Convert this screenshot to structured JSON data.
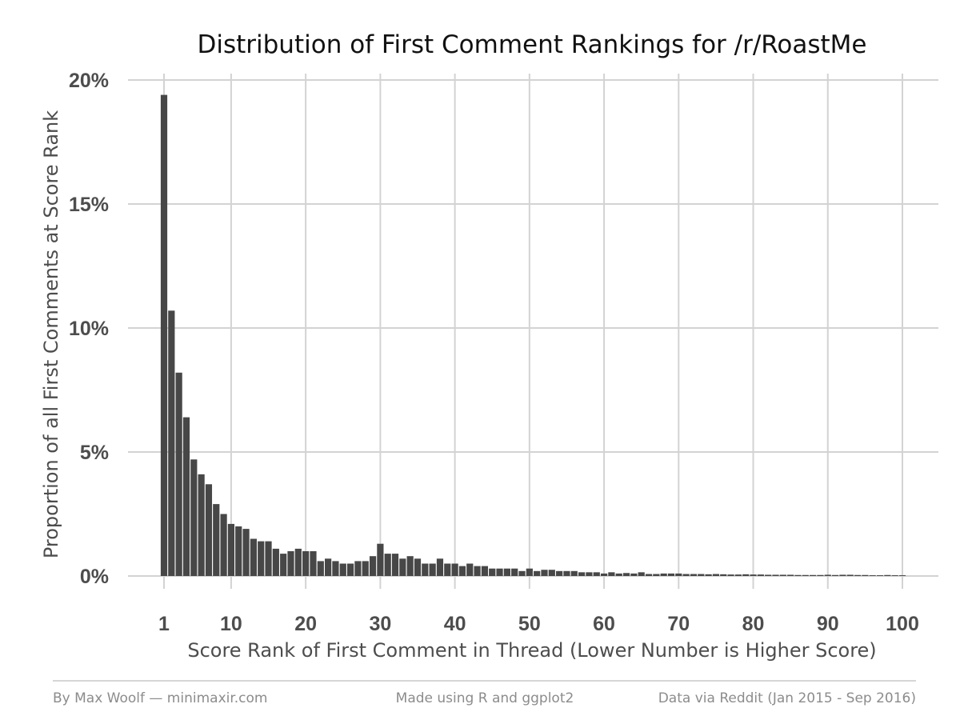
{
  "chart_data": {
    "type": "bar",
    "title": "Distribution of First Comment Rankings for /r/RoastMe",
    "xlabel": "Score Rank of First Comment in Thread (Lower Number is Higher Score)",
    "ylabel": "Proportion of all First Comments at Score Rank",
    "xlim": [
      1,
      100
    ],
    "ylim": [
      0,
      0.2
    ],
    "x_ticks": [
      1,
      10,
      20,
      30,
      40,
      50,
      60,
      70,
      80,
      90,
      100
    ],
    "y_ticks": [
      0,
      0.05,
      0.1,
      0.15,
      0.2
    ],
    "y_tick_labels": [
      "0%",
      "5%",
      "10%",
      "15%",
      "20%"
    ],
    "grid": true,
    "bar_color": "#474747",
    "x": [
      1,
      2,
      3,
      4,
      5,
      6,
      7,
      8,
      9,
      10,
      11,
      12,
      13,
      14,
      15,
      16,
      17,
      18,
      19,
      20,
      21,
      22,
      23,
      24,
      25,
      26,
      27,
      28,
      29,
      30,
      31,
      32,
      33,
      34,
      35,
      36,
      37,
      38,
      39,
      40,
      41,
      42,
      43,
      44,
      45,
      46,
      47,
      48,
      49,
      50,
      51,
      52,
      53,
      54,
      55,
      56,
      57,
      58,
      59,
      60,
      61,
      62,
      63,
      64,
      65,
      66,
      67,
      68,
      69,
      70,
      71,
      72,
      73,
      74,
      75,
      76,
      77,
      78,
      79,
      80,
      81,
      82,
      83,
      84,
      85,
      86,
      87,
      88,
      89,
      90,
      91,
      92,
      93,
      94,
      95,
      96,
      97,
      98,
      99,
      100
    ],
    "values": [
      0.194,
      0.107,
      0.082,
      0.064,
      0.047,
      0.041,
      0.037,
      0.029,
      0.025,
      0.021,
      0.02,
      0.019,
      0.015,
      0.014,
      0.014,
      0.011,
      0.009,
      0.01,
      0.011,
      0.01,
      0.01,
      0.006,
      0.007,
      0.006,
      0.005,
      0.005,
      0.006,
      0.006,
      0.008,
      0.013,
      0.009,
      0.009,
      0.007,
      0.008,
      0.007,
      0.005,
      0.005,
      0.007,
      0.005,
      0.005,
      0.004,
      0.005,
      0.004,
      0.004,
      0.003,
      0.003,
      0.003,
      0.003,
      0.002,
      0.003,
      0.002,
      0.0025,
      0.0025,
      0.002,
      0.002,
      0.002,
      0.0015,
      0.0015,
      0.0015,
      0.001,
      0.0015,
      0.001,
      0.0012,
      0.001,
      0.0015,
      0.0008,
      0.0008,
      0.001,
      0.001,
      0.001,
      0.0008,
      0.0008,
      0.0008,
      0.0007,
      0.0008,
      0.0007,
      0.0006,
      0.0006,
      0.0007,
      0.0006,
      0.0006,
      0.0005,
      0.0005,
      0.0005,
      0.0005,
      0.0004,
      0.0004,
      0.0004,
      0.0004,
      0.0005,
      0.0004,
      0.0005,
      0.0005,
      0.0004,
      0.0004,
      0.0003,
      0.0003,
      0.0004,
      0.0003,
      0.0003
    ]
  },
  "footer": {
    "left": "By Max Woolf — minimaxir.com",
    "center": "Made using R and ggplot2",
    "right": "Data via Reddit (Jan 2015 - Sep 2016)"
  }
}
